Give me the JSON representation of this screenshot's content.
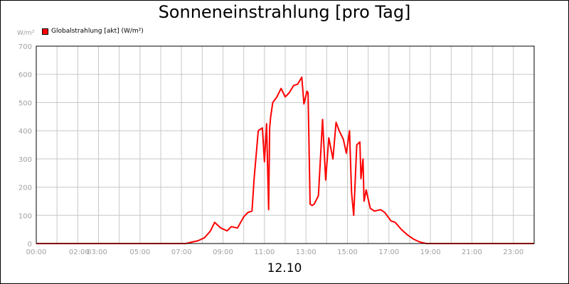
{
  "chart_data": {
    "type": "line",
    "title": "Sonneneinstrahlung [pro Tag]",
    "date_label": "12.10",
    "ylabel": "W/m²",
    "ylim": [
      0,
      700
    ],
    "yticks": [
      "0",
      "100",
      "200",
      "300",
      "400",
      "500",
      "600",
      "700"
    ],
    "xlim": [
      0,
      24
    ],
    "xticks": [
      {
        "x": 0,
        "label": "00:00"
      },
      {
        "x": 2,
        "label": "02:00"
      },
      {
        "x": 3,
        "label": "03:00"
      },
      {
        "x": 5,
        "label": "05:00"
      },
      {
        "x": 7,
        "label": "07:00"
      },
      {
        "x": 9,
        "label": "09:00"
      },
      {
        "x": 11,
        "label": "11:00"
      },
      {
        "x": 13,
        "label": "13:00"
      },
      {
        "x": 15,
        "label": "15:00"
      },
      {
        "x": 17,
        "label": "17:00"
      },
      {
        "x": 19,
        "label": "19:00"
      },
      {
        "x": 21,
        "label": "21:00"
      },
      {
        "x": 23,
        "label": "23:00"
      }
    ],
    "grid": true,
    "legend_position": "top-left",
    "series": [
      {
        "name": "Globalstrahlung [akt] (W/m²)",
        "color": "#ff0000",
        "x": [
          0,
          7.2,
          7.5,
          7.8,
          8.1,
          8.4,
          8.6,
          8.9,
          9.2,
          9.4,
          9.7,
          10.0,
          10.2,
          10.4,
          10.5,
          10.7,
          10.9,
          11.0,
          11.1,
          11.2,
          11.25,
          11.3,
          11.4,
          11.6,
          11.8,
          12.0,
          12.2,
          12.4,
          12.6,
          12.8,
          12.9,
          13.05,
          13.1,
          13.2,
          13.3,
          13.4,
          13.6,
          13.8,
          13.95,
          14.1,
          14.3,
          14.45,
          14.6,
          14.8,
          14.95,
          15.1,
          15.2,
          15.3,
          15.45,
          15.6,
          15.65,
          15.75,
          15.8,
          15.9,
          16.1,
          16.3,
          16.6,
          16.8,
          17.1,
          17.3,
          17.6,
          17.9,
          18.2,
          18.5,
          18.8,
          24
        ],
        "values": [
          0,
          0,
          5,
          10,
          20,
          45,
          75,
          55,
          45,
          60,
          55,
          95,
          110,
          115,
          230,
          400,
          410,
          290,
          425,
          120,
          410,
          450,
          500,
          520,
          550,
          520,
          535,
          560,
          565,
          590,
          495,
          540,
          535,
          140,
          135,
          140,
          170,
          440,
          225,
          375,
          300,
          430,
          400,
          370,
          320,
          400,
          180,
          100,
          350,
          360,
          230,
          300,
          150,
          190,
          125,
          115,
          120,
          110,
          80,
          75,
          50,
          30,
          15,
          5,
          0,
          0
        ]
      }
    ]
  }
}
